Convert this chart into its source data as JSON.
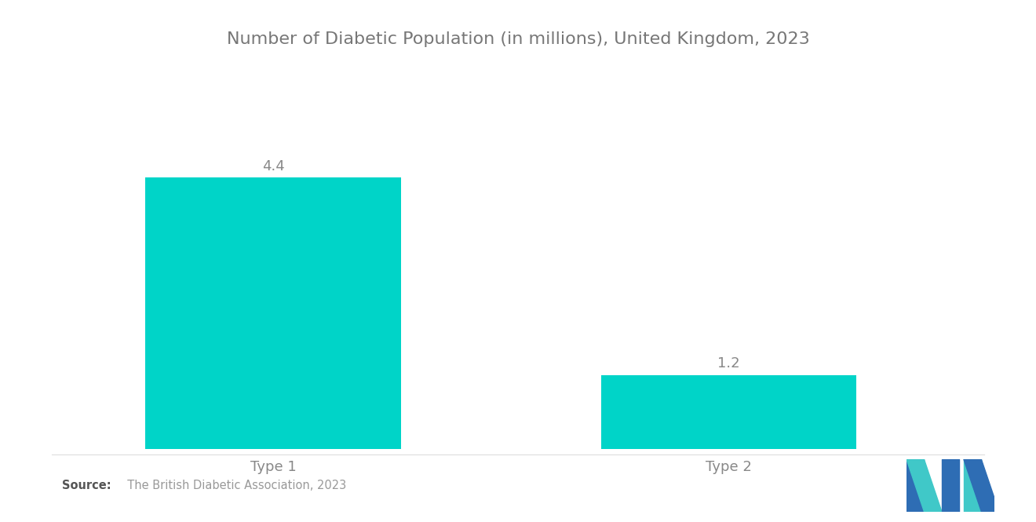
{
  "title": "Number of Diabetic Population (in millions), United Kingdom, 2023",
  "categories": [
    "Type 1",
    "Type 2"
  ],
  "values": [
    4.4,
    1.2
  ],
  "bar_color": "#00D4C8",
  "background_color": "#ffffff",
  "title_fontsize": 16,
  "label_fontsize": 13,
  "value_fontsize": 13,
  "source_bold": "Source:",
  "source_normal": "  The British Diabetic Association, 2023",
  "ylim": [
    0,
    5.5
  ],
  "bar_width": 0.28,
  "x_positions": [
    0.22,
    0.72
  ],
  "xlim": [
    0.0,
    1.0
  ],
  "title_color": "#777777",
  "label_color": "#888888",
  "value_color": "#888888",
  "source_bold_color": "#555555",
  "source_normal_color": "#999999",
  "logo_blue": "#2E6DB4",
  "logo_teal": "#40C8C8"
}
